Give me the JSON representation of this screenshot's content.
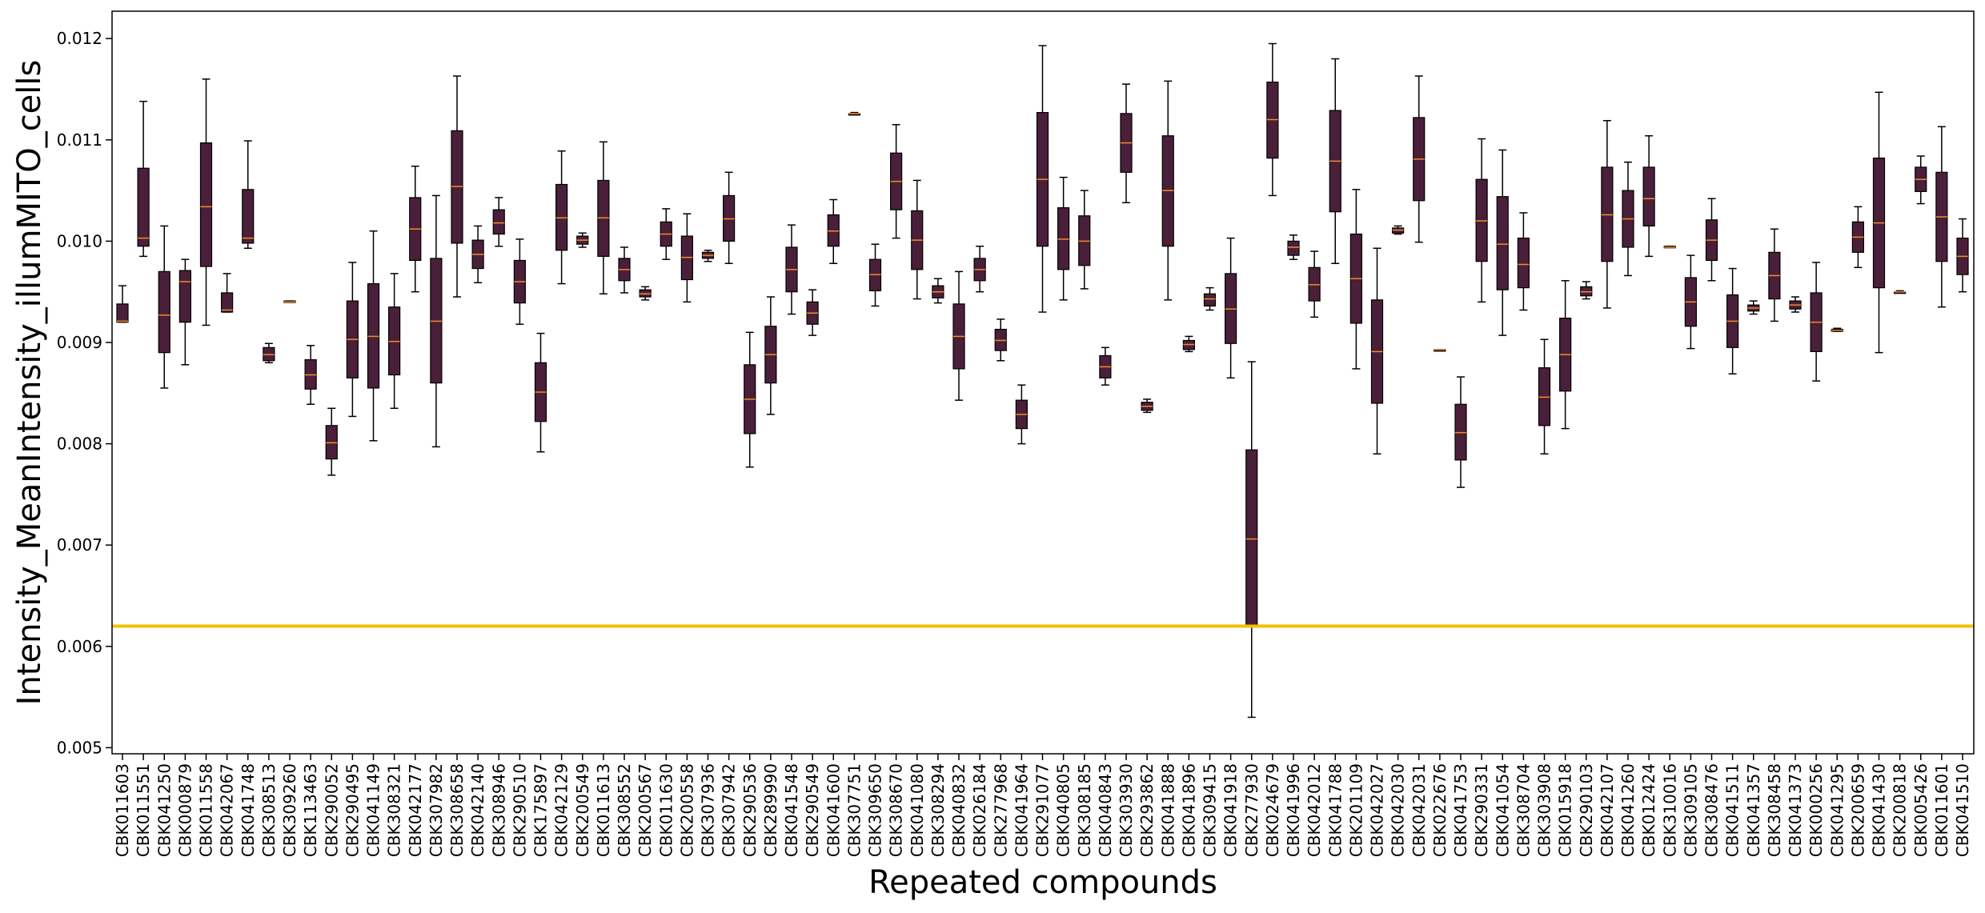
{
  "chart_data": {
    "type": "box",
    "xlabel": "Repeated compounds",
    "ylabel": "Intensity_MeanIntensity_illumMITO_cells",
    "ylim": [
      0.00494,
      0.01227
    ],
    "yticks": [
      0.005,
      0.006,
      0.007,
      0.008,
      0.009,
      0.01,
      0.011,
      0.012
    ],
    "ytick_labels": [
      "0.005",
      "0.006",
      "0.007",
      "0.008",
      "0.009",
      "0.010",
      "0.011",
      "0.012"
    ],
    "threshold": 0.0062,
    "grid": false,
    "legend": "none",
    "categories": [
      "CBK011603",
      "CBK011551",
      "CBK041250",
      "CBK000879",
      "CBK011558",
      "CBK042067",
      "CBK041748",
      "CBK308513",
      "CBK309260",
      "CBK113463",
      "CBK290052",
      "CBK290495",
      "CBK041149",
      "CBK308321",
      "CBK042177",
      "CBK307982",
      "CBK308658",
      "CBK042140",
      "CBK308946",
      "CBK290510",
      "CBK175897",
      "CBK042129",
      "CBK200549",
      "CBK011613",
      "CBK308552",
      "CBK200567",
      "CBK011630",
      "CBK200558",
      "CBK307936",
      "CBK307942",
      "CBK290536",
      "CBK289990",
      "CBK041548",
      "CBK290549",
      "CBK041600",
      "CBK307751",
      "CBK309650",
      "CBK308670",
      "CBK041080",
      "CBK308294",
      "CBK040832",
      "CBK026184",
      "CBK277968",
      "CBK041964",
      "CBK291077",
      "CBK040805",
      "CBK308185",
      "CBK040843",
      "CBK303930",
      "CBK293862",
      "CBK041888",
      "CBK041896",
      "CBK309415",
      "CBK041918",
      "CBK277930",
      "CBK024679",
      "CBK041996",
      "CBK042012",
      "CBK041788",
      "CBK201109",
      "CBK042027",
      "CBK042030",
      "CBK042031",
      "CBK022676",
      "CBK041753",
      "CBK290331",
      "CBK041054",
      "CBK308704",
      "CBK303908",
      "CBK015918",
      "CBK290103",
      "CBK042107",
      "CBK041260",
      "CBK012424",
      "CBK310016",
      "CBK309105",
      "CBK308476",
      "CBK041511",
      "CBK041357",
      "CBK308458",
      "CBK041373",
      "CBK000256",
      "CBK041295",
      "CBK200659",
      "CBK041430",
      "CBK200818",
      "CBK005426",
      "CBK011601",
      "CBK041510"
    ],
    "boxes": [
      {
        "min": 0.0092,
        "q1": 0.0092,
        "median": 0.00921,
        "q3": 0.00938,
        "max": 0.00956
      },
      {
        "min": 0.00985,
        "q1": 0.00995,
        "median": 0.01003,
        "q3": 0.01072,
        "max": 0.01138
      },
      {
        "min": 0.00855,
        "q1": 0.0089,
        "median": 0.00927,
        "q3": 0.0097,
        "max": 0.01015
      },
      {
        "min": 0.00878,
        "q1": 0.0092,
        "median": 0.0096,
        "q3": 0.00971,
        "max": 0.00982
      },
      {
        "min": 0.00917,
        "q1": 0.00975,
        "median": 0.01034,
        "q3": 0.01097,
        "max": 0.0116
      },
      {
        "min": 0.0093,
        "q1": 0.0093,
        "median": 0.00932,
        "q3": 0.00949,
        "max": 0.00968
      },
      {
        "min": 0.00993,
        "q1": 0.00998,
        "median": 0.01003,
        "q3": 0.01051,
        "max": 0.01099
      },
      {
        "min": 0.0088,
        "q1": 0.00882,
        "median": 0.00888,
        "q3": 0.00895,
        "max": 0.00899
      },
      {
        "min": 0.0094,
        "q1": 0.0094,
        "median": 0.0094,
        "q3": 0.00941,
        "max": 0.00941
      },
      {
        "min": 0.00839,
        "q1": 0.00854,
        "median": 0.00868,
        "q3": 0.00883,
        "max": 0.00897
      },
      {
        "min": 0.00769,
        "q1": 0.00785,
        "median": 0.00801,
        "q3": 0.00818,
        "max": 0.00835
      },
      {
        "min": 0.00827,
        "q1": 0.00865,
        "median": 0.00903,
        "q3": 0.00941,
        "max": 0.00979
      },
      {
        "min": 0.00803,
        "q1": 0.00855,
        "median": 0.00906,
        "q3": 0.00958,
        "max": 0.0101
      },
      {
        "min": 0.00835,
        "q1": 0.00868,
        "median": 0.00901,
        "q3": 0.00935,
        "max": 0.00968
      },
      {
        "min": 0.0095,
        "q1": 0.00981,
        "median": 0.01012,
        "q3": 0.01043,
        "max": 0.01074
      },
      {
        "min": 0.00797,
        "q1": 0.0086,
        "median": 0.00921,
        "q3": 0.00983,
        "max": 0.01045
      },
      {
        "min": 0.00945,
        "q1": 0.00998,
        "median": 0.01054,
        "q3": 0.01109,
        "max": 0.01163
      },
      {
        "min": 0.00959,
        "q1": 0.00973,
        "median": 0.00987,
        "q3": 0.01001,
        "max": 0.01015
      },
      {
        "min": 0.00995,
        "q1": 0.01007,
        "median": 0.01018,
        "q3": 0.01031,
        "max": 0.01043
      },
      {
        "min": 0.00918,
        "q1": 0.00939,
        "median": 0.0096,
        "q3": 0.00981,
        "max": 0.01002
      },
      {
        "min": 0.00792,
        "q1": 0.00822,
        "median": 0.00851,
        "q3": 0.0088,
        "max": 0.00909
      },
      {
        "min": 0.00958,
        "q1": 0.00991,
        "median": 0.01023,
        "q3": 0.01056,
        "max": 0.01089
      },
      {
        "min": 0.00994,
        "q1": 0.00997,
        "median": 0.01001,
        "q3": 0.01005,
        "max": 0.01008
      },
      {
        "min": 0.00948,
        "q1": 0.00985,
        "median": 0.01023,
        "q3": 0.0106,
        "max": 0.01098
      },
      {
        "min": 0.00949,
        "q1": 0.00961,
        "median": 0.00972,
        "q3": 0.00983,
        "max": 0.00994
      },
      {
        "min": 0.00942,
        "q1": 0.00945,
        "median": 0.00948,
        "q3": 0.00952,
        "max": 0.00955
      },
      {
        "min": 0.00982,
        "q1": 0.00995,
        "median": 0.01007,
        "q3": 0.01019,
        "max": 0.01032
      },
      {
        "min": 0.0094,
        "q1": 0.00962,
        "median": 0.00984,
        "q3": 0.01005,
        "max": 0.01027
      },
      {
        "min": 0.0098,
        "q1": 0.00983,
        "median": 0.00986,
        "q3": 0.00989,
        "max": 0.00991
      },
      {
        "min": 0.00978,
        "q1": 0.01,
        "median": 0.01022,
        "q3": 0.01045,
        "max": 0.01068
      },
      {
        "min": 0.00777,
        "q1": 0.0081,
        "median": 0.00844,
        "q3": 0.00878,
        "max": 0.0091
      },
      {
        "min": 0.00829,
        "q1": 0.0086,
        "median": 0.00888,
        "q3": 0.00916,
        "max": 0.00945
      },
      {
        "min": 0.00928,
        "q1": 0.0095,
        "median": 0.00972,
        "q3": 0.00994,
        "max": 0.01016
      },
      {
        "min": 0.00907,
        "q1": 0.00918,
        "median": 0.00929,
        "q3": 0.0094,
        "max": 0.00952
      },
      {
        "min": 0.00978,
        "q1": 0.00995,
        "median": 0.0101,
        "q3": 0.01026,
        "max": 0.01041
      },
      {
        "min": 0.01125,
        "q1": 0.01125,
        "median": 0.01126,
        "q3": 0.01126,
        "max": 0.01127
      },
      {
        "min": 0.00936,
        "q1": 0.00951,
        "median": 0.00967,
        "q3": 0.00982,
        "max": 0.00997
      },
      {
        "min": 0.01003,
        "q1": 0.01031,
        "median": 0.01059,
        "q3": 0.01087,
        "max": 0.01115
      },
      {
        "min": 0.00943,
        "q1": 0.00972,
        "median": 0.01001,
        "q3": 0.0103,
        "max": 0.0106
      },
      {
        "min": 0.00939,
        "q1": 0.00944,
        "median": 0.0095,
        "q3": 0.00956,
        "max": 0.00963
      },
      {
        "min": 0.00843,
        "q1": 0.00874,
        "median": 0.00906,
        "q3": 0.00938,
        "max": 0.0097
      },
      {
        "min": 0.0095,
        "q1": 0.00961,
        "median": 0.00972,
        "q3": 0.00983,
        "max": 0.00995
      },
      {
        "min": 0.00882,
        "q1": 0.00892,
        "median": 0.00902,
        "q3": 0.00913,
        "max": 0.00923
      },
      {
        "min": 0.008,
        "q1": 0.00815,
        "median": 0.00829,
        "q3": 0.00843,
        "max": 0.00858
      },
      {
        "min": 0.0093,
        "q1": 0.00995,
        "median": 0.01061,
        "q3": 0.01127,
        "max": 0.01193
      },
      {
        "min": 0.00942,
        "q1": 0.00972,
        "median": 0.01002,
        "q3": 0.01033,
        "max": 0.01063
      },
      {
        "min": 0.00953,
        "q1": 0.00976,
        "median": 0.01,
        "q3": 0.01025,
        "max": 0.0105
      },
      {
        "min": 0.00858,
        "q1": 0.00865,
        "median": 0.00876,
        "q3": 0.00887,
        "max": 0.00895
      },
      {
        "min": 0.01038,
        "q1": 0.01068,
        "median": 0.01097,
        "q3": 0.01126,
        "max": 0.01155
      },
      {
        "min": 0.00831,
        "q1": 0.00833,
        "median": 0.00837,
        "q3": 0.00841,
        "max": 0.00844
      },
      {
        "min": 0.00942,
        "q1": 0.00995,
        "median": 0.0105,
        "q3": 0.01104,
        "max": 0.01158
      },
      {
        "min": 0.00891,
        "q1": 0.00893,
        "median": 0.00898,
        "q3": 0.00902,
        "max": 0.00906
      },
      {
        "min": 0.00932,
        "q1": 0.00936,
        "median": 0.00943,
        "q3": 0.00948,
        "max": 0.00954
      },
      {
        "min": 0.00865,
        "q1": 0.00899,
        "median": 0.00933,
        "q3": 0.00968,
        "max": 0.01003
      },
      {
        "min": 0.0053,
        "q1": 0.0062,
        "median": 0.00706,
        "q3": 0.00794,
        "max": 0.00881
      },
      {
        "min": 0.01045,
        "q1": 0.01082,
        "median": 0.0112,
        "q3": 0.01157,
        "max": 0.01195
      },
      {
        "min": 0.00982,
        "q1": 0.00986,
        "median": 0.00994,
        "q3": 0.01,
        "max": 0.01006
      },
      {
        "min": 0.00925,
        "q1": 0.00941,
        "median": 0.00957,
        "q3": 0.00974,
        "max": 0.0099
      },
      {
        "min": 0.00978,
        "q1": 0.01029,
        "median": 0.01079,
        "q3": 0.01129,
        "max": 0.0118
      },
      {
        "min": 0.00874,
        "q1": 0.00919,
        "median": 0.00963,
        "q3": 0.01007,
        "max": 0.01051
      },
      {
        "min": 0.0079,
        "q1": 0.0084,
        "median": 0.00891,
        "q3": 0.00942,
        "max": 0.00993
      },
      {
        "min": 0.01007,
        "q1": 0.01008,
        "median": 0.01011,
        "q3": 0.01013,
        "max": 0.01015
      },
      {
        "min": 0.00999,
        "q1": 0.0104,
        "median": 0.01081,
        "q3": 0.01122,
        "max": 0.01163
      },
      {
        "min": 0.00893,
        "q1": 0.00893,
        "median": 0.00893,
        "q3": 0.00893,
        "max": 0.00893
      },
      {
        "min": 0.00757,
        "q1": 0.00784,
        "median": 0.00811,
        "q3": 0.00839,
        "max": 0.00866
      },
      {
        "min": 0.0094,
        "q1": 0.0098,
        "median": 0.0102,
        "q3": 0.01061,
        "max": 0.01101
      },
      {
        "min": 0.00907,
        "q1": 0.00952,
        "median": 0.00997,
        "q3": 0.01044,
        "max": 0.0109
      },
      {
        "min": 0.00932,
        "q1": 0.00954,
        "median": 0.00977,
        "q3": 0.01003,
        "max": 0.01028
      },
      {
        "min": 0.0079,
        "q1": 0.00818,
        "median": 0.00846,
        "q3": 0.00875,
        "max": 0.00903
      },
      {
        "min": 0.00815,
        "q1": 0.00852,
        "median": 0.00888,
        "q3": 0.00924,
        "max": 0.00961
      },
      {
        "min": 0.00943,
        "q1": 0.00946,
        "median": 0.0095,
        "q3": 0.00955,
        "max": 0.0096
      },
      {
        "min": 0.00934,
        "q1": 0.0098,
        "median": 0.01026,
        "q3": 0.01073,
        "max": 0.01119
      },
      {
        "min": 0.00966,
        "q1": 0.00994,
        "median": 0.01022,
        "q3": 0.0105,
        "max": 0.01078
      },
      {
        "min": 0.00985,
        "q1": 0.01015,
        "median": 0.01042,
        "q3": 0.01073,
        "max": 0.01104
      },
      {
        "min": 0.00994,
        "q1": 0.00994,
        "median": 0.00994,
        "q3": 0.00995,
        "max": 0.00995
      },
      {
        "min": 0.00894,
        "q1": 0.00916,
        "median": 0.0094,
        "q3": 0.00964,
        "max": 0.00986
      },
      {
        "min": 0.00961,
        "q1": 0.00981,
        "median": 0.01001,
        "q3": 0.01021,
        "max": 0.01042
      },
      {
        "min": 0.00869,
        "q1": 0.00895,
        "median": 0.00921,
        "q3": 0.00947,
        "max": 0.00973
      },
      {
        "min": 0.00928,
        "q1": 0.00931,
        "median": 0.00934,
        "q3": 0.00937,
        "max": 0.00941
      },
      {
        "min": 0.00921,
        "q1": 0.00943,
        "median": 0.00966,
        "q3": 0.00989,
        "max": 0.01012
      },
      {
        "min": 0.0093,
        "q1": 0.00933,
        "median": 0.00937,
        "q3": 0.00941,
        "max": 0.00945
      },
      {
        "min": 0.00862,
        "q1": 0.00891,
        "median": 0.0092,
        "q3": 0.00949,
        "max": 0.00979
      },
      {
        "min": 0.00911,
        "q1": 0.00911,
        "median": 0.00912,
        "q3": 0.00913,
        "max": 0.00914
      },
      {
        "min": 0.00974,
        "q1": 0.00989,
        "median": 0.01004,
        "q3": 0.01019,
        "max": 0.01034
      },
      {
        "min": 0.0089,
        "q1": 0.00954,
        "median": 0.01018,
        "q3": 0.01082,
        "max": 0.01147
      },
      {
        "min": 0.00949,
        "q1": 0.00949,
        "median": 0.0095,
        "q3": 0.0095,
        "max": 0.00951
      },
      {
        "min": 0.01037,
        "q1": 0.01049,
        "median": 0.01061,
        "q3": 0.01073,
        "max": 0.01084
      },
      {
        "min": 0.00935,
        "q1": 0.0098,
        "median": 0.01024,
        "q3": 0.01068,
        "max": 0.01113
      },
      {
        "min": 0.0095,
        "q1": 0.00967,
        "median": 0.00985,
        "q3": 0.01003,
        "max": 0.01022
      }
    ],
    "colors": {
      "box_fill": "#4a1f3a",
      "box_edge": "#000000",
      "median": "#f28c28",
      "whisker": "#000000",
      "threshold": "#f5c000",
      "axes": "#000000",
      "background": "#ffffff"
    }
  }
}
